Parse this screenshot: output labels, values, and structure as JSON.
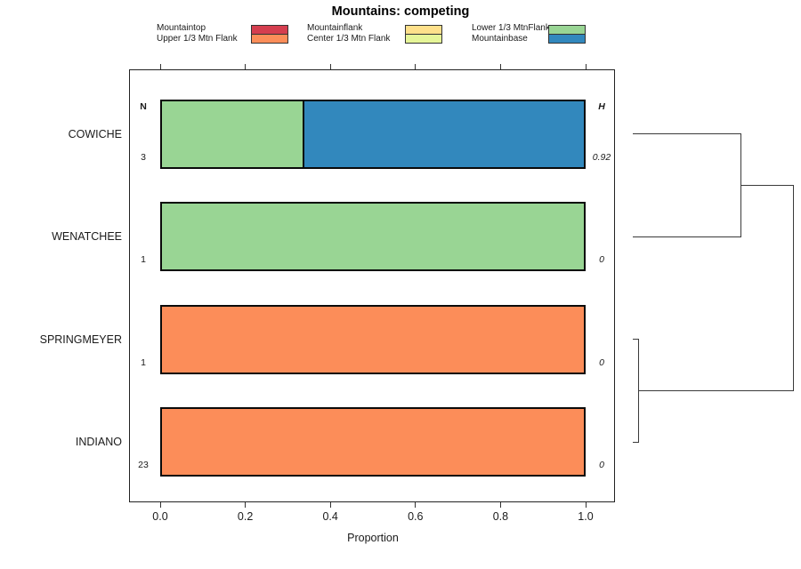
{
  "title": "Mountains: competing",
  "legend": {
    "groups": [
      {
        "items": [
          {
            "label": "Mountaintop",
            "color": "#d53e4f"
          },
          {
            "label": "Upper 1/3 Mtn Flank",
            "color": "#fc8d59"
          }
        ]
      },
      {
        "items": [
          {
            "label": "Mountainflank",
            "color": "#fee08b"
          },
          {
            "label": "Center 1/3 Mtn Flank",
            "color": "#e6f598"
          }
        ]
      },
      {
        "items": [
          {
            "label": "Lower 1/3 MtnFlank",
            "color": "#99d594"
          },
          {
            "label": "Mountainbase",
            "color": "#3288bd"
          }
        ]
      }
    ]
  },
  "columns": {
    "n_header": "N",
    "h_header": "H"
  },
  "chart_data": {
    "type": "bar",
    "orientation": "horizontal",
    "stacked": true,
    "title": "Mountains: competing",
    "xlabel": "Proportion",
    "xlim": [
      0,
      1
    ],
    "x_tick_labels": [
      "0.0",
      "0.2",
      "0.4",
      "0.6",
      "0.8",
      "1.0"
    ],
    "grid": false,
    "categories": [
      "COWICHE",
      "WENATCHEE",
      "SPRINGMEYER",
      "INDIANO"
    ],
    "legend_entries": [
      "Mountaintop",
      "Upper 1/3 Mtn Flank",
      "Mountainflank",
      "Center 1/3 Mtn Flank",
      "Lower 1/3 MtnFlank",
      "Mountainbase"
    ],
    "legend_colors": [
      "#d53e4f",
      "#fc8d59",
      "#fee08b",
      "#e6f598",
      "#99d594",
      "#3288bd"
    ],
    "rows": [
      {
        "category": "COWICHE",
        "n": "3",
        "h": "0.92",
        "segments": [
          {
            "name": "Lower 1/3 MtnFlank",
            "color": "#99d594",
            "value": 0.333
          },
          {
            "name": "Mountainbase",
            "color": "#3288bd",
            "value": 0.667
          }
        ]
      },
      {
        "category": "WENATCHEE",
        "n": "1",
        "h": "0",
        "segments": [
          {
            "name": "Lower 1/3 MtnFlank",
            "color": "#99d594",
            "value": 1.0
          }
        ]
      },
      {
        "category": "SPRINGMEYER",
        "n": "1",
        "h": "0",
        "segments": [
          {
            "name": "Upper 1/3 Mtn Flank",
            "color": "#fc8d59",
            "value": 1.0
          }
        ]
      },
      {
        "category": "INDIANO",
        "n": "23",
        "h": "0",
        "segments": [
          {
            "name": "Upper 1/3 Mtn Flank",
            "color": "#fc8d59",
            "value": 1.0
          }
        ]
      }
    ],
    "dendrogram": {
      "position": "right-of-plot",
      "leaves": [
        "COWICHE",
        "WENATCHEE",
        "SPRINGMEYER",
        "INDIANO"
      ],
      "merges": [
        {
          "members": [
            "SPRINGMEYER",
            "INDIANO"
          ],
          "relative_height": 0.04
        },
        {
          "members": [
            "COWICHE",
            "WENATCHEE"
          ],
          "relative_height": 0.67
        },
        {
          "members": [
            "COWICHE+WENATCHEE",
            "SPRINGMEYER+INDIANO"
          ],
          "relative_height": 1.0
        }
      ]
    }
  }
}
